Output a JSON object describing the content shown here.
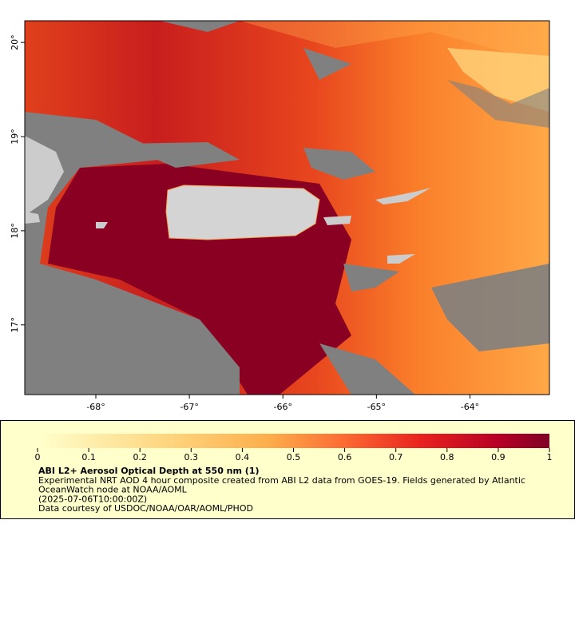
{
  "map": {
    "xlim": [
      -68.76,
      -63.15
    ],
    "ylim": [
      16.26,
      20.23
    ],
    "xticks": [
      {
        "value": -68,
        "label": "-68°"
      },
      {
        "value": -67,
        "label": "-67°"
      },
      {
        "value": -66,
        "label": "-66°"
      },
      {
        "value": -65,
        "label": "-65°"
      },
      {
        "value": -64,
        "label": "-64°"
      }
    ],
    "yticks": [
      {
        "value": 17,
        "label": "17°"
      },
      {
        "value": 18,
        "label": "18°"
      },
      {
        "value": 19,
        "label": "19°"
      },
      {
        "value": 20,
        "label": "20°"
      }
    ]
  },
  "legend": {
    "colorbar": {
      "lim": [
        0,
        1
      ],
      "ticks": [
        0,
        0.1,
        0.2,
        0.3,
        0.4,
        0.5,
        0.6,
        0.7,
        0.8,
        0.9,
        1
      ]
    },
    "title": "ABI L2+ Aerosol Optical Depth at 550 nm (1)",
    "lines": [
      "Experimental NRT AOD 4 hour composite created from ABI L2 data from GOES-19. Fields generated by Atlantic",
      "OceanWatch node at NOAA/AOML",
      "(2025-07-06T10:00:00Z)",
      "Data courtesy of USDOC/NOAA/OAR/AOML/PHOD"
    ]
  }
}
